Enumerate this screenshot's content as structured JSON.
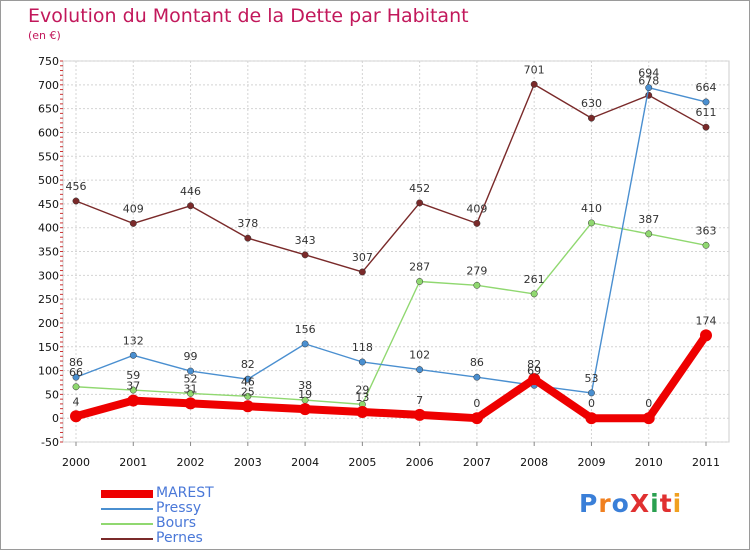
{
  "header": {
    "title": "Evolution du Montant de la Dette par Habitant",
    "subtitle": "(en €)"
  },
  "logo": {
    "text": "ProXiti",
    "colors": [
      "#3a7fd8",
      "#f08020",
      "#3a7fd8",
      "#e03030",
      "#2aa050",
      "#e03030",
      "#f0a020"
    ]
  },
  "chart_data": {
    "type": "line",
    "title": "Evolution du Montant de la Dette par Habitant",
    "subtitle": "(en €)",
    "xlabel": "",
    "ylabel": "",
    "categories": [
      "2000",
      "2001",
      "2002",
      "2003",
      "2004",
      "2005",
      "2006",
      "2007",
      "2008",
      "2009",
      "2010",
      "2011"
    ],
    "ylim": [
      -50,
      750
    ],
    "yticks": [
      -50,
      0,
      50,
      100,
      150,
      200,
      250,
      300,
      350,
      400,
      450,
      500,
      550,
      600,
      650,
      700,
      750
    ],
    "grid": true,
    "legend_position": "bottom-left",
    "series": [
      {
        "name": "MAREST",
        "color": "#ee0000",
        "values": [
          4,
          37,
          31,
          25,
          19,
          13,
          7,
          0,
          82,
          0,
          0,
          174
        ],
        "labels": [
          "4",
          "37",
          "31",
          "25",
          "19",
          "13",
          "7",
          "0",
          "82",
          "0",
          "0",
          "174"
        ]
      },
      {
        "name": "Pressy",
        "color": "#4a8fd0",
        "values": [
          86,
          132,
          99,
          82,
          156,
          118,
          102,
          86,
          69,
          53,
          694,
          664
        ],
        "labels": [
          "86",
          "132",
          "99",
          "82",
          "156",
          "118",
          "102",
          "86",
          "69",
          "53",
          "694",
          "664"
        ]
      },
      {
        "name": "Bours",
        "color": "#90d870",
        "values": [
          66,
          59,
          52,
          46,
          38,
          29,
          287,
          279,
          261,
          410,
          387,
          363
        ],
        "labels": [
          "66",
          "59",
          "52",
          "46",
          "38",
          "29",
          "287",
          "279",
          "261",
          "410",
          "387",
          "363"
        ]
      },
      {
        "name": "Pernes",
        "color": "#7a2a2a",
        "values": [
          456,
          409,
          446,
          378,
          343,
          307,
          452,
          409,
          701,
          630,
          678,
          611
        ],
        "labels": [
          "456",
          "409",
          "446",
          "378",
          "343",
          "307",
          "452",
          "409",
          "701",
          "630",
          "678",
          "611"
        ]
      }
    ]
  }
}
